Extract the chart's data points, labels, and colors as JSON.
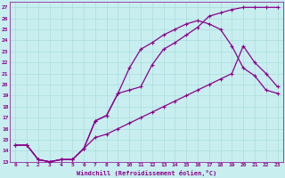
{
  "xlabel": "Windchill (Refroidissement éolien,°C)",
  "bg_color": "#c8eef0",
  "grid_color": "#aadddd",
  "line_color": "#8b008b",
  "xlim": [
    -0.5,
    23.5
  ],
  "ylim": [
    13,
    27.5
  ],
  "xticks": [
    0,
    1,
    2,
    3,
    4,
    5,
    6,
    7,
    8,
    9,
    10,
    11,
    12,
    13,
    14,
    15,
    16,
    17,
    18,
    19,
    20,
    21,
    22,
    23
  ],
  "yticks": [
    13,
    14,
    15,
    16,
    17,
    18,
    19,
    20,
    21,
    22,
    23,
    24,
    25,
    26,
    27
  ],
  "curve1_x": [
    0,
    1,
    2,
    3,
    4,
    5,
    6,
    7,
    8,
    9,
    10,
    11,
    12,
    13,
    14,
    15,
    16,
    17,
    18,
    19,
    20,
    21,
    22,
    23
  ],
  "curve1_y": [
    14.5,
    14.5,
    13.2,
    13.0,
    13.2,
    13.2,
    14.2,
    16.7,
    17.2,
    19.2,
    19.5,
    19.8,
    21.8,
    23.2,
    23.8,
    24.5,
    25.2,
    26.2,
    26.5,
    26.8,
    27.0,
    27.0,
    27.0,
    27.0
  ],
  "curve2_x": [
    0,
    1,
    2,
    3,
    4,
    5,
    6,
    7,
    8,
    9,
    10,
    11,
    12,
    13,
    14,
    15,
    16,
    17,
    18,
    19,
    20,
    21,
    22,
    23
  ],
  "curve2_y": [
    14.5,
    14.5,
    13.2,
    13.0,
    13.2,
    13.2,
    14.2,
    16.7,
    17.2,
    19.2,
    21.5,
    23.2,
    23.8,
    24.5,
    25.0,
    25.5,
    25.8,
    25.5,
    25.0,
    23.5,
    21.5,
    20.8,
    19.5,
    19.2
  ],
  "curve3_x": [
    0,
    1,
    2,
    3,
    4,
    5,
    6,
    7,
    8,
    9,
    10,
    11,
    12,
    13,
    14,
    15,
    16,
    17,
    18,
    19,
    20,
    21,
    22,
    23
  ],
  "curve3_y": [
    14.5,
    14.5,
    13.2,
    13.0,
    13.2,
    13.2,
    14.2,
    15.2,
    15.5,
    16.0,
    16.5,
    17.0,
    17.5,
    18.0,
    18.5,
    19.0,
    19.5,
    20.0,
    20.5,
    21.0,
    23.5,
    22.0,
    21.0,
    19.8
  ]
}
